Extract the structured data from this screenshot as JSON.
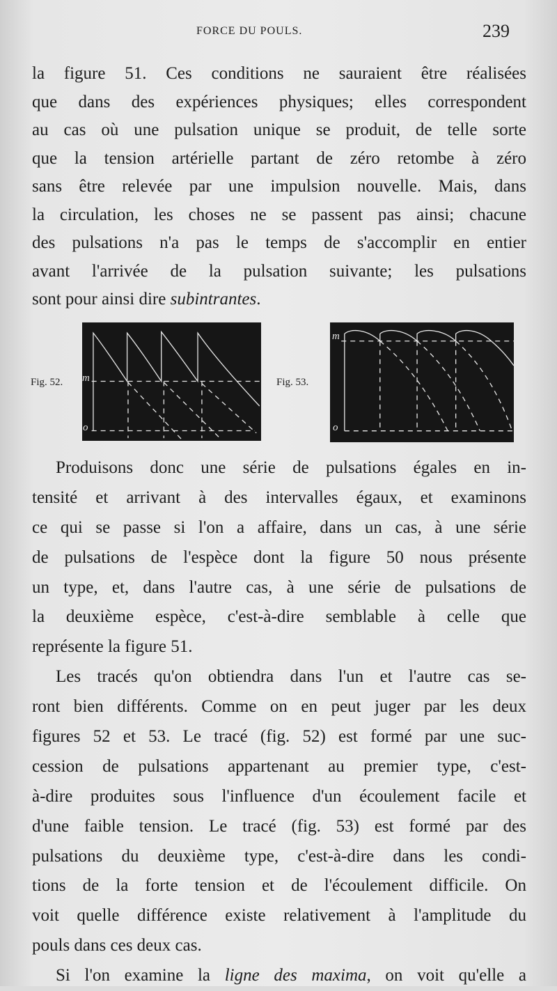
{
  "header": {
    "title": "FORCE DU POULS.",
    "page_number": "239"
  },
  "paragraph_top": [
    "la figure 51. Ces conditions ne sauraient être réalisées",
    "que dans des expériences physiques; elles correspondent",
    "au cas où une pulsation unique se produit, de telle sorte",
    "que la tension artérielle partant de zéro retombe à zéro",
    "sans être relevée par une impulsion nouvelle. Mais, dans",
    "la circulation, les choses ne se passent pas ainsi; chacune",
    "des pulsations n'a pas le temps de s'accomplir en entier",
    "avant l'arrivée de la pulsation suivante; les pulsations",
    {
      "pre": "sont pour ainsi dire ",
      "em": "subintrantes",
      "post": "."
    }
  ],
  "figures": [
    {
      "label": "Fig. 52.",
      "m": "m",
      "o": "o"
    },
    {
      "label": "Fig. 53.",
      "m": "m",
      "o": "o"
    }
  ],
  "paragraph_2": [
    "Produisons donc une série de pulsations égales en in-",
    "tensité et arrivant à des intervalles égaux, et examinons",
    "ce qui se passe si l'on a affaire, dans un cas, à une série",
    "de pulsations de l'espèce dont la figure 50 nous présente",
    "un type, et, dans l'autre cas, à une série de pulsations de",
    "la deuxième espèce, c'est-à-dire semblable à celle que",
    "représente la figure 51."
  ],
  "paragraph_3": [
    "Les tracés qu'on obtiendra dans l'un et l'autre cas se-",
    "ront bien différents. Comme on en peut juger par les deux",
    "figures 52 et 53. Le tracé (fig. 52) est formé par une suc-",
    "cession de pulsations appartenant au premier type, c'est-",
    "à-dire produites sous l'influence d'un écoulement facile et",
    "d'une faible tension. Le tracé (fig. 53) est formé par des",
    "pulsations du deuxième type, c'est-à-dire dans les condi-",
    "tions de la forte tension et de l'écoulement difficile. On",
    "voit quelle différence existe relativement à l'amplitude du",
    "pouls dans ces deux cas."
  ],
  "paragraph_4": [
    {
      "pre": "Si l'on examine la ",
      "em": "ligne des maxima",
      "post": ", on voit qu'elle a"
    }
  ]
}
